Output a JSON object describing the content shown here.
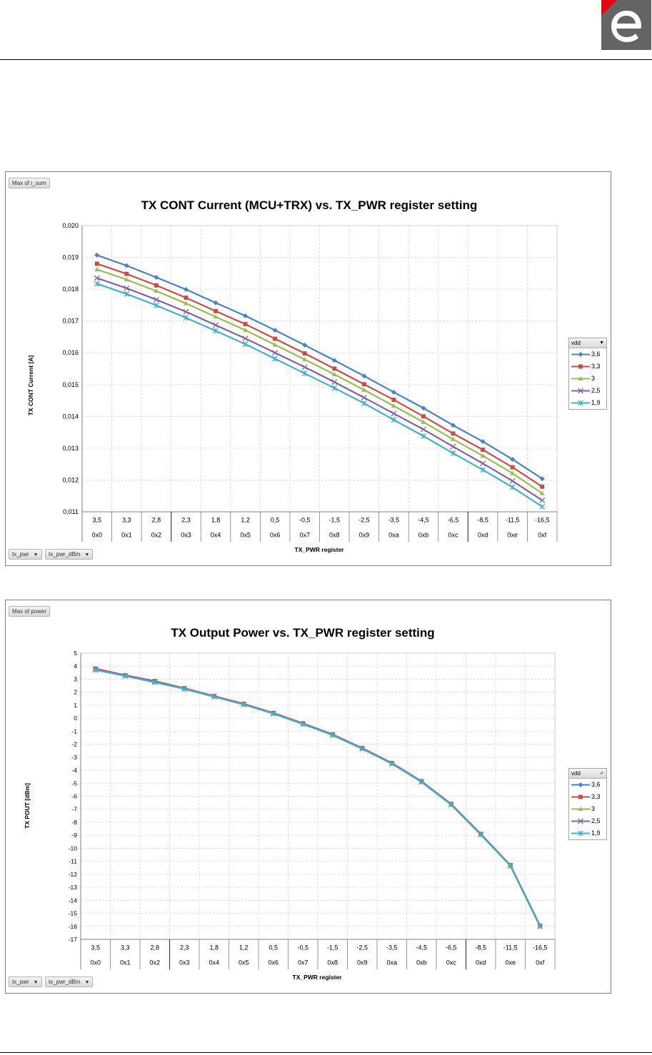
{
  "logo": {
    "letter": "e",
    "colors": {
      "tile": "#646464",
      "corner": "#e30613"
    }
  },
  "charts": [
    {
      "id": "chart1",
      "pivot_value_button": "Max of i_sum",
      "pivot_axis_buttons": [
        "tx_pwr",
        "tx_pwr_dBm"
      ],
      "legend_field": "vdd",
      "legend_filter_icon": "dropdown-arrow-icon"
    },
    {
      "id": "chart2",
      "pivot_value_button": "Max of power",
      "pivot_axis_buttons": [
        "tx_pwr",
        "tx_pwr_dBm"
      ],
      "legend_field": "vdd",
      "legend_filter_icon": "filter-check-icon"
    }
  ],
  "chart_data": [
    {
      "type": "line",
      "title": "TX CONT Current (MCU+TRX) vs. TX_PWR register setting",
      "xlabel": "TX_PWR register",
      "ylabel": "TX CONT Current [A]",
      "x_outer": [
        "0x0",
        "0x1",
        "0x2",
        "0x3",
        "0x4",
        "0x5",
        "0x6",
        "0x7",
        "0x8",
        "0x9",
        "0xa",
        "0xb",
        "0xc",
        "0xd",
        "0xe",
        "0xf"
      ],
      "x_inner": [
        "3,5",
        "3,3",
        "2,8",
        "2,3",
        "1,8",
        "1,2",
        "0,5",
        "-0,5",
        "-1,5",
        "-2,5",
        "-3,5",
        "-4,5",
        "-6,5",
        "-8,5",
        "-11,5",
        "-16,5"
      ],
      "ylim": [
        0.011,
        0.02
      ],
      "yticks": [
        "0,011",
        "0,012",
        "0,013",
        "0,014",
        "0,015",
        "0,016",
        "0,017",
        "0,018",
        "0,019",
        "0,020"
      ],
      "grid": true,
      "legend_position": "right",
      "series": [
        {
          "name": "3,6",
          "color": "#4f81bd",
          "marker": "diamond",
          "values": [
            0.01907,
            0.01874,
            0.01837,
            0.01799,
            0.01757,
            0.01716,
            0.01671,
            0.01624,
            0.01576,
            0.01527,
            0.01476,
            0.01426,
            0.01372,
            0.01321,
            0.01265,
            0.01204
          ]
        },
        {
          "name": "3,3",
          "color": "#c0504d",
          "marker": "square",
          "values": [
            0.0188,
            0.01848,
            0.01812,
            0.01773,
            0.01731,
            0.0169,
            0.01644,
            0.01598,
            0.0155,
            0.01501,
            0.01452,
            0.014,
            0.01346,
            0.01295,
            0.0124,
            0.01179
          ]
        },
        {
          "name": "3",
          "color": "#9bbb59",
          "marker": "triangle",
          "values": [
            0.01862,
            0.0183,
            0.01794,
            0.01755,
            0.01713,
            0.01671,
            0.01625,
            0.01579,
            0.01532,
            0.01483,
            0.01433,
            0.01382,
            0.01328,
            0.01276,
            0.01221,
            0.01158
          ]
        },
        {
          "name": "2,5",
          "color": "#8064a2",
          "marker": "x",
          "values": [
            0.01835,
            0.01803,
            0.01767,
            0.01729,
            0.01687,
            0.01645,
            0.016,
            0.01555,
            0.01508,
            0.01459,
            0.01409,
            0.01359,
            0.01305,
            0.01252,
            0.01197,
            0.01136
          ]
        },
        {
          "name": "1,9",
          "color": "#4bacc6",
          "marker": "asterisk",
          "values": [
            0.01817,
            0.01785,
            0.01749,
            0.0171,
            0.01669,
            0.01627,
            0.01581,
            0.01535,
            0.01489,
            0.01441,
            0.01389,
            0.01338,
            0.01284,
            0.01232,
            0.01177,
            0.01116
          ]
        }
      ]
    },
    {
      "type": "line",
      "title": "TX Output Power vs. TX_PWR register setting",
      "xlabel": "TX_PWR register",
      "ylabel": "TX POUT [dBm]",
      "x_outer": [
        "0x0",
        "0x1",
        "0x2",
        "0x3",
        "0x4",
        "0x5",
        "0x6",
        "0x7",
        "0x8",
        "0x9",
        "0xa",
        "0xb",
        "0xc",
        "0xd",
        "0xe",
        "0xf"
      ],
      "x_inner": [
        "3,5",
        "3,3",
        "2,8",
        "2,3",
        "1,8",
        "1,2",
        "0,5",
        "-0,5",
        "-1,5",
        "-2,5",
        "-3,5",
        "-4,5",
        "-6,5",
        "-8,5",
        "-11,5",
        "-16,5"
      ],
      "ylim": [
        -17,
        5
      ],
      "yticks": [
        "5",
        "4",
        "3",
        "2",
        "1",
        "0",
        "-1",
        "-2",
        "-3",
        "-4",
        "-5",
        "-6",
        "-7",
        "-8",
        "-9",
        "-10",
        "-11",
        "-12",
        "-13",
        "-14",
        "-15",
        "-16",
        "-17"
      ],
      "grid": true,
      "legend_position": "right",
      "series": [
        {
          "name": "3,6",
          "color": "#4f81bd",
          "marker": "diamond",
          "values": [
            3.8,
            3.3,
            2.85,
            2.3,
            1.7,
            1.1,
            0.4,
            -0.4,
            -1.25,
            -2.3,
            -3.45,
            -4.85,
            -6.6,
            -8.9,
            -11.3,
            -15.95
          ]
        },
        {
          "name": "3,3",
          "color": "#c0504d",
          "marker": "square",
          "values": [
            3.8,
            3.3,
            2.85,
            2.3,
            1.7,
            1.1,
            0.4,
            -0.4,
            -1.25,
            -2.3,
            -3.45,
            -4.85,
            -6.6,
            -8.9,
            -11.3,
            -15.95
          ]
        },
        {
          "name": "3",
          "color": "#9bbb59",
          "marker": "triangle",
          "values": [
            3.75,
            3.25,
            2.8,
            2.25,
            1.65,
            1.05,
            0.35,
            -0.45,
            -1.3,
            -2.35,
            -3.5,
            -4.9,
            -6.65,
            -8.95,
            -11.35,
            -16.0
          ]
        },
        {
          "name": "2,5",
          "color": "#8064a2",
          "marker": "x",
          "values": [
            3.75,
            3.25,
            2.8,
            2.25,
            1.65,
            1.05,
            0.35,
            -0.45,
            -1.3,
            -2.35,
            -3.5,
            -4.9,
            -6.65,
            -8.95,
            -11.35,
            -16.0
          ]
        },
        {
          "name": "1,9",
          "color": "#4bacc6",
          "marker": "asterisk",
          "values": [
            3.7,
            3.25,
            2.75,
            2.25,
            1.65,
            1.05,
            0.35,
            -0.45,
            -1.3,
            -2.35,
            -3.5,
            -4.9,
            -6.65,
            -8.95,
            -11.35,
            -16.0
          ]
        }
      ]
    }
  ]
}
